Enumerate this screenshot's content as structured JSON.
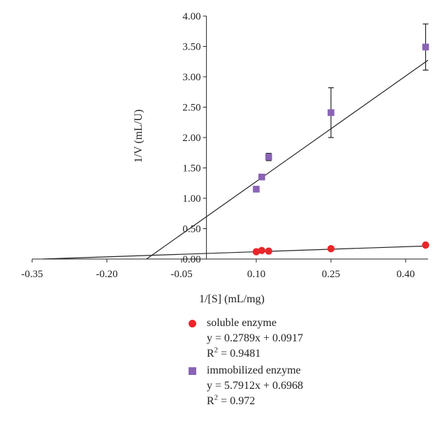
{
  "chart_data": {
    "type": "scatter",
    "xlabel": "1/[S] (mL/mg)",
    "ylabel": "1/V (mL/U)",
    "xlim": [
      -0.35,
      0.445
    ],
    "ylim": [
      0,
      4.0
    ],
    "x_ticks": [
      "-0.35",
      "-0.20",
      "-0.05",
      "0.10",
      "0.25",
      "0.40"
    ],
    "x_tick_values": [
      -0.35,
      -0.2,
      -0.05,
      0.1,
      0.25,
      0.4
    ],
    "y_ticks": [
      "0.00",
      "0.50",
      "1.00",
      "1.50",
      "2.00",
      "2.50",
      "3.00",
      "3.50",
      "4.00"
    ],
    "y_tick_values": [
      0,
      0.5,
      1.0,
      1.5,
      2.0,
      2.5,
      3.0,
      3.5,
      4.0
    ],
    "grid": false,
    "legend_position": "bottom-right",
    "series": [
      {
        "name": "soluble enzyme",
        "marker": "circle",
        "color": "#e8262a",
        "x": [
          0.1,
          0.111,
          0.125,
          0.25,
          0.44
        ],
        "y": [
          0.12,
          0.14,
          0.13,
          0.17,
          0.23
        ],
        "error": [
          0,
          0,
          0,
          0,
          0
        ],
        "fit": {
          "slope": 0.2789,
          "intercept": 0.0917
        },
        "equation": "y = 0.2789x + 0.0917",
        "r2_label": "R",
        "r2_value": " = 0.9481"
      },
      {
        "name": "immobilized enzyme",
        "marker": "square",
        "color": "#8a63b5",
        "x": [
          0.1,
          0.111,
          0.125,
          0.25,
          0.44
        ],
        "y": [
          1.15,
          1.35,
          1.68,
          2.41,
          3.49
        ],
        "error": [
          0,
          0,
          0.06,
          0.41,
          0.38
        ],
        "fit": {
          "slope": 5.7912,
          "intercept": 0.6968
        },
        "equation": "y = 5.7912x + 0.6968",
        "r2_label": "R",
        "r2_value": " = 0.972"
      }
    ]
  }
}
